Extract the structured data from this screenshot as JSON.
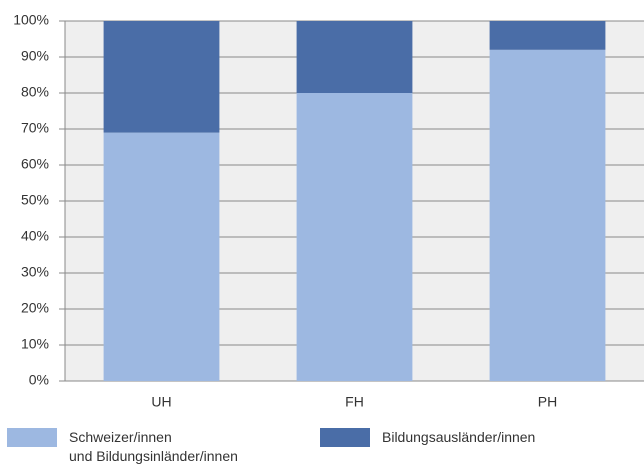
{
  "chart_data": {
    "type": "stacked_bar",
    "categories": [
      "UH",
      "FH",
      "PH"
    ],
    "series": [
      {
        "name": "Schweizer/innen\nund Bildungsinländer/innen",
        "color": "#9db8e1",
        "values": [
          69,
          80,
          92
        ]
      },
      {
        "name": "Bildungsausländer/innen",
        "color": "#4a6da7",
        "values": [
          31,
          20,
          8
        ]
      }
    ],
    "ylim": [
      0,
      100
    ],
    "yticks": [
      {
        "value": 0,
        "label": "0%"
      },
      {
        "value": 10,
        "label": "10%"
      },
      {
        "value": 20,
        "label": "20%"
      },
      {
        "value": 30,
        "label": "30%"
      },
      {
        "value": 40,
        "label": "40%"
      },
      {
        "value": 50,
        "label": "50%"
      },
      {
        "value": 60,
        "label": "60%"
      },
      {
        "value": 70,
        "label": "70%"
      },
      {
        "value": 80,
        "label": "80%"
      },
      {
        "value": 90,
        "label": "90%"
      },
      {
        "value": 100,
        "label": "100%"
      }
    ],
    "grid": true
  }
}
